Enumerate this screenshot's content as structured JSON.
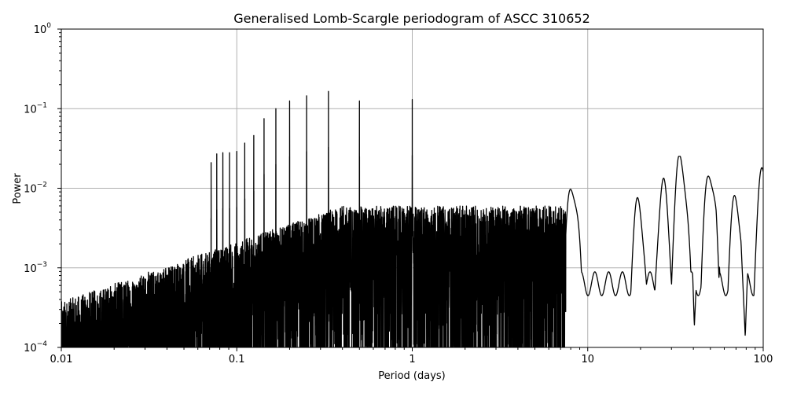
{
  "chart_data": {
    "type": "line",
    "title": "Generalised Lomb-Scargle periodogram of ASCC 310652",
    "xlabel": "Period (days)",
    "ylabel": "Power",
    "xscale": "log",
    "yscale": "log",
    "xlim": [
      0.01,
      100
    ],
    "ylim": [
      0.0001,
      1
    ],
    "grid": true,
    "legend": null,
    "x_ticks": [
      {
        "value": 0.01,
        "label": "0.01"
      },
      {
        "value": 0.1,
        "label": "0.1"
      },
      {
        "value": 1,
        "label": "1"
      },
      {
        "value": 10,
        "label": "10"
      },
      {
        "value": 100,
        "label": "100"
      }
    ],
    "y_ticks": [
      {
        "value": 0.0001,
        "base": "10",
        "exp": "−4"
      },
      {
        "value": 0.001,
        "base": "10",
        "exp": "−3"
      },
      {
        "value": 0.01,
        "base": "10",
        "exp": "−2"
      },
      {
        "value": 0.1,
        "base": "10",
        "exp": "−1"
      },
      {
        "value": 1,
        "base": "10",
        "exp": "0"
      }
    ],
    "line_color": "#000000",
    "grid_color": "#b0b0b0",
    "alias_peaks": [
      {
        "period": 0.0714,
        "power": 0.021
      },
      {
        "period": 0.0769,
        "power": 0.027
      },
      {
        "period": 0.0833,
        "power": 0.028
      },
      {
        "period": 0.0909,
        "power": 0.028
      },
      {
        "period": 0.1,
        "power": 0.029
      },
      {
        "period": 0.111,
        "power": 0.037
      },
      {
        "period": 0.125,
        "power": 0.046
      },
      {
        "period": 0.143,
        "power": 0.075
      },
      {
        "period": 0.167,
        "power": 0.1
      },
      {
        "period": 0.2,
        "power": 0.125
      },
      {
        "period": 0.25,
        "power": 0.145
      },
      {
        "period": 0.333,
        "power": 0.165
      },
      {
        "period": 0.5,
        "power": 0.125
      },
      {
        "period": 1.0,
        "power": 0.13
      }
    ],
    "long_period_features": [
      {
        "period": 8.2,
        "power": 0.011
      },
      {
        "period": 19.5,
        "power": 0.006
      },
      {
        "period": 27.0,
        "power": 0.0095
      },
      {
        "period": 34.0,
        "power": 0.023
      },
      {
        "period": 50.0,
        "power": 0.016
      },
      {
        "period": 70.0,
        "power": 0.007
      },
      {
        "period": 100.0,
        "power": 0.015
      }
    ],
    "notable_dips": [
      {
        "period": 40.5,
        "power": 0.00017
      },
      {
        "period": 56.0,
        "power": 0.0005
      },
      {
        "period": 79.0,
        "power": 0.0001
      }
    ]
  }
}
